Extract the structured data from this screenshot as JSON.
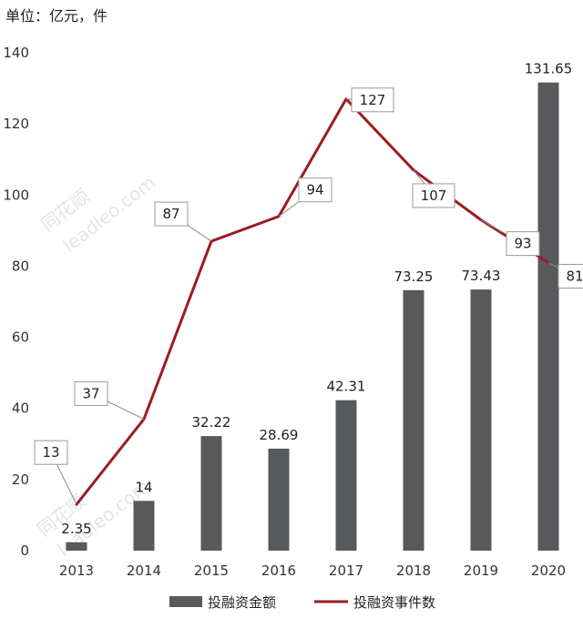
{
  "unit_label": "单位：亿元，件",
  "watermark": {
    "cn": "同花顺",
    "en": "leadleo.com"
  },
  "chart_data": {
    "type": "bar",
    "title": "",
    "xlabel": "",
    "ylabel": "",
    "ylim": [
      0,
      140
    ],
    "yticks": [
      0,
      20,
      40,
      60,
      80,
      100,
      120,
      140
    ],
    "categories": [
      "2013",
      "2014",
      "2015",
      "2016",
      "2017",
      "2018",
      "2019",
      "2020"
    ],
    "series": [
      {
        "name": "投融资金额",
        "type": "bar",
        "color": "#58595b",
        "values": [
          2.35,
          14,
          32.22,
          28.69,
          42.31,
          73.25,
          73.43,
          131.65
        ],
        "labels": [
          "2.35",
          "14",
          "32.22",
          "28.69",
          "42.31",
          "73.25",
          "73.43",
          "131.65"
        ]
      },
      {
        "name": "投融资事件数",
        "type": "line",
        "color": "#9b1c1f",
        "values": [
          13,
          37,
          87,
          94,
          127,
          107,
          93,
          81
        ],
        "labels": [
          "13",
          "37",
          "87",
          "94",
          "127",
          "107",
          "93",
          "81"
        ]
      }
    ],
    "grid": false,
    "legend": "bottom"
  }
}
